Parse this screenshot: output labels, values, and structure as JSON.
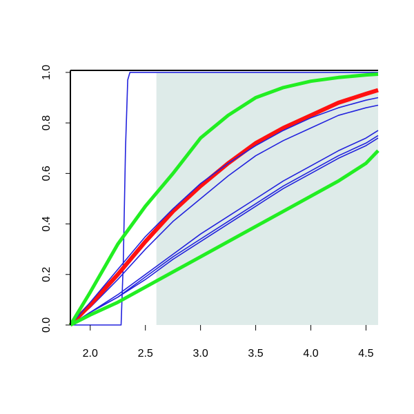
{
  "chart_data": {
    "type": "line",
    "x": [
      1.82,
      2.0,
      2.25,
      2.5,
      2.75,
      3.0,
      3.25,
      3.5,
      3.75,
      4.0,
      4.25,
      4.5,
      4.61
    ],
    "shaded_region": {
      "xlim": [
        2.6,
        4.61
      ],
      "ylim": [
        0,
        1.0
      ],
      "color": "#deebe9"
    },
    "series": [
      {
        "color": "#2222dd",
        "width": 1.6,
        "x": [
          1.82,
          2.28,
          2.3,
          2.32,
          2.34,
          2.36,
          4.61
        ],
        "values": [
          0,
          0,
          0.25,
          0.7,
          0.97,
          1.0,
          1.0
        ]
      },
      {
        "color": "#2222dd",
        "width": 1.6,
        "values": [
          0,
          0.05,
          0.12,
          0.2,
          0.28,
          0.36,
          0.43,
          0.5,
          0.57,
          0.63,
          0.69,
          0.74,
          0.77
        ]
      },
      {
        "color": "#2222dd",
        "width": 1.6,
        "values": [
          0,
          0.05,
          0.11,
          0.19,
          0.27,
          0.34,
          0.41,
          0.48,
          0.55,
          0.61,
          0.67,
          0.72,
          0.75
        ]
      },
      {
        "color": "#2222dd",
        "width": 1.6,
        "values": [
          0,
          0.05,
          0.11,
          0.18,
          0.26,
          0.33,
          0.4,
          0.47,
          0.54,
          0.6,
          0.66,
          0.71,
          0.74
        ]
      },
      {
        "color": "#2222dd",
        "width": 1.6,
        "values": [
          0,
          0.07,
          0.18,
          0.3,
          0.41,
          0.5,
          0.59,
          0.67,
          0.73,
          0.78,
          0.83,
          0.86,
          0.87
        ]
      },
      {
        "color": "#ff1111",
        "width": 6,
        "values": [
          0,
          0.08,
          0.2,
          0.33,
          0.45,
          0.55,
          0.64,
          0.72,
          0.78,
          0.83,
          0.88,
          0.915,
          0.93
        ]
      },
      {
        "color": "#2222dd",
        "width": 1.6,
        "values": [
          0,
          0.09,
          0.22,
          0.35,
          0.46,
          0.56,
          0.64,
          0.71,
          0.77,
          0.82,
          0.86,
          0.89,
          0.9
        ]
      },
      {
        "color": "#22ee22",
        "width": 5,
        "values": [
          0,
          0.13,
          0.32,
          0.47,
          0.6,
          0.74,
          0.83,
          0.9,
          0.94,
          0.965,
          0.98,
          0.99,
          0.993
        ]
      },
      {
        "color": "#22ee22",
        "width": 5,
        "values": [
          0,
          0.04,
          0.09,
          0.15,
          0.21,
          0.27,
          0.33,
          0.39,
          0.45,
          0.51,
          0.57,
          0.64,
          0.69
        ]
      }
    ],
    "xlim": [
      1.82,
      4.61
    ],
    "ylim": [
      0,
      1.008
    ],
    "xticks": [
      {
        "value": 2.0,
        "label": "2.0"
      },
      2.5,
      {
        "value": 3.0,
        "label": "3.0"
      },
      3.5,
      {
        "value": 4.0,
        "label": "4.0"
      },
      4.5
    ],
    "yticks": [
      {
        "value": 0,
        "label": "0.0"
      },
      0.2,
      0.4,
      0.6,
      0.8,
      {
        "value": 1.0,
        "label": "1.0"
      }
    ]
  }
}
